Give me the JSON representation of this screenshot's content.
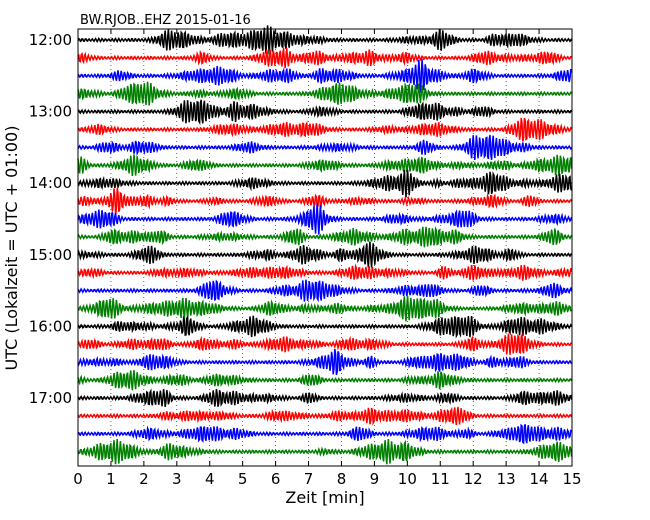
{
  "chart_data": {
    "type": "line",
    "title": "BW.RJOB..EHZ 2015-01-16",
    "xlabel": "Zeit  [min]",
    "ylabel": "UTC (Lokalzeit = UTC + 01:00)",
    "xlim": [
      0,
      15
    ],
    "x_ticks": [
      "0",
      "1",
      "2",
      "3",
      "4",
      "5",
      "6",
      "7",
      "8",
      "9",
      "10",
      "11",
      "12",
      "13",
      "14",
      "15"
    ],
    "y_ticks": [
      "12:00",
      "13:00",
      "14:00",
      "15:00",
      "16:00",
      "17:00"
    ],
    "rows": [
      "12:00",
      "12:15",
      "12:30",
      "12:45",
      "13:00",
      "13:15",
      "13:30",
      "13:45",
      "14:00",
      "14:15",
      "14:30",
      "14:45",
      "15:00",
      "15:15",
      "15:30",
      "15:45",
      "16:00",
      "16:15",
      "16:30",
      "16:45",
      "17:00",
      "17:15",
      "17:30",
      "17:45"
    ],
    "color_cycle": [
      "#000000",
      "#ff0000",
      "#0000ff",
      "#007f00"
    ],
    "grid": true,
    "grid_style": "vertical dotted"
  }
}
